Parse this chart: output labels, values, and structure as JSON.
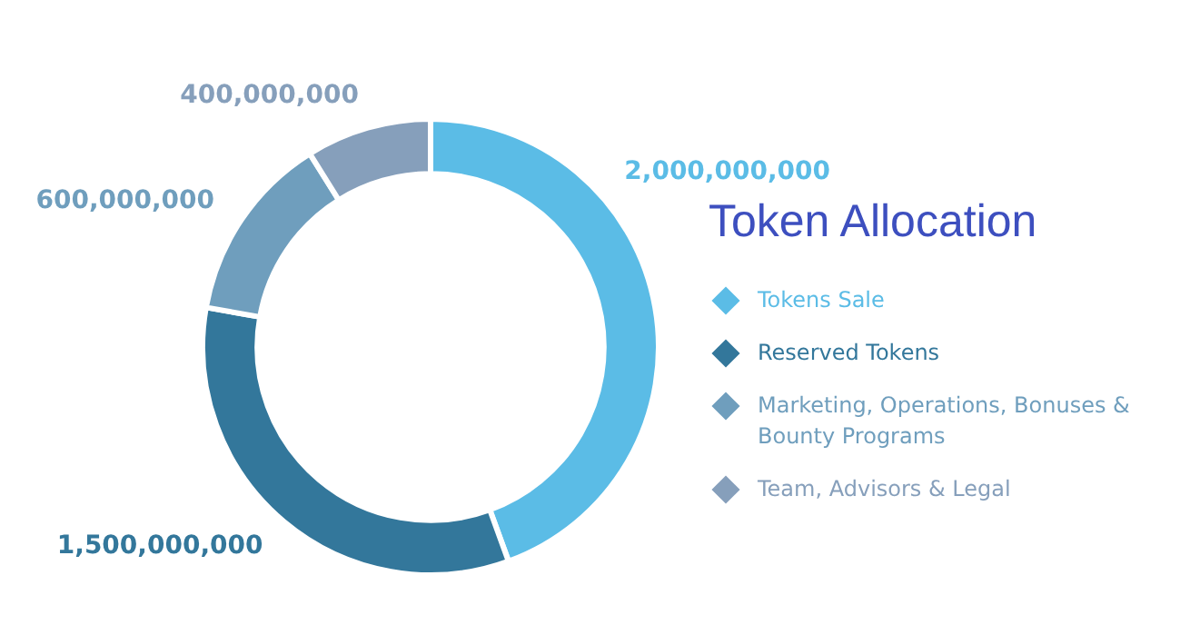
{
  "chart_data": {
    "type": "donut",
    "title": "Token Allocation",
    "categories": [
      "Tokens Sale",
      "Reserved Tokens",
      "Marketing, Operations, Bonuses & Bounty Programs",
      "Team, Advisors & Legal"
    ],
    "values": [
      2000000000,
      1500000000,
      600000000,
      400000000
    ],
    "colors": [
      "#5bbce6",
      "#33779b",
      "#6f9ebd",
      "#869fbb"
    ],
    "value_labels": [
      "2,000,000,000",
      "1,500,000,000",
      "600,000,000",
      "400,000,000"
    ],
    "legend": "right"
  }
}
